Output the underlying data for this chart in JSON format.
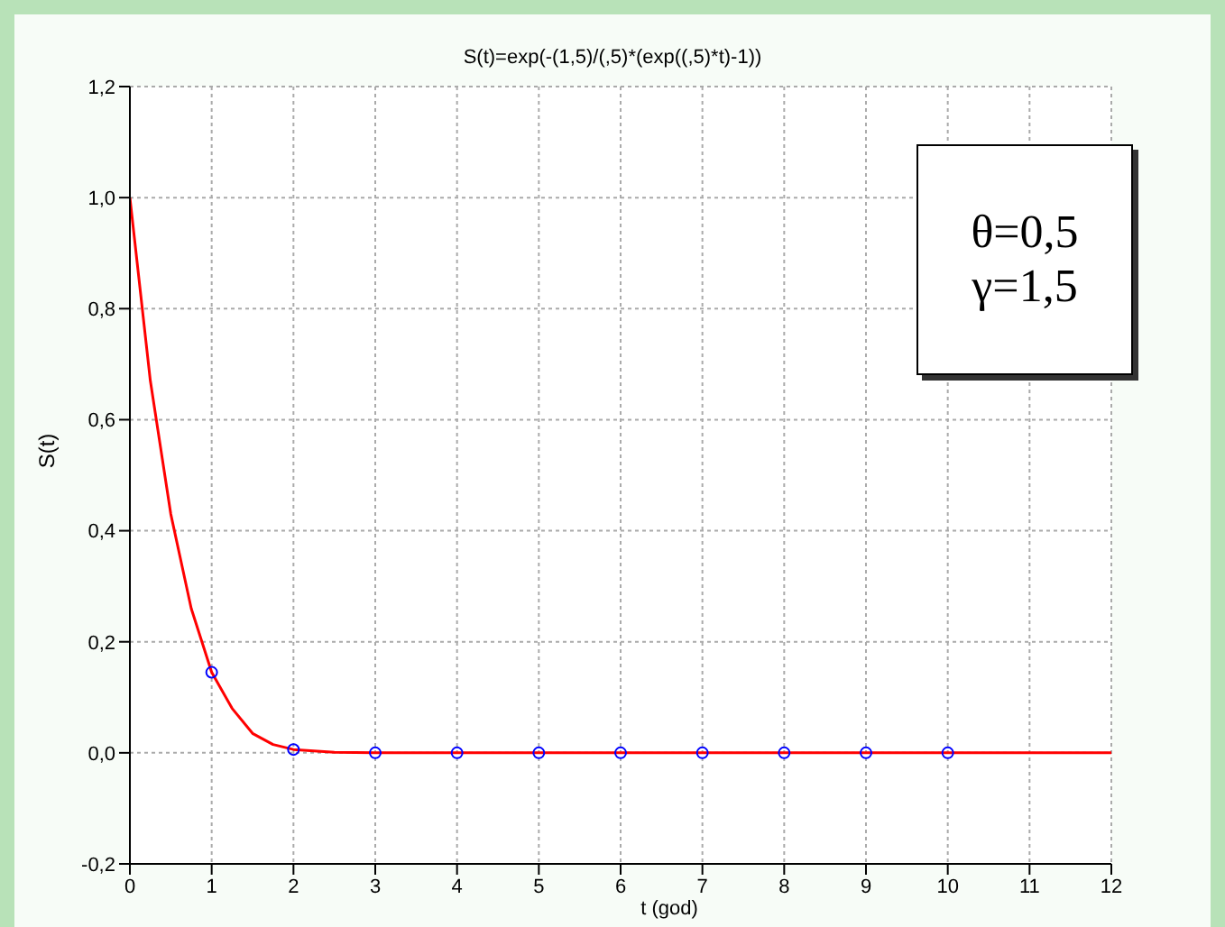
{
  "chart_data": {
    "type": "line",
    "title": "S(t)=exp(-(1,5)/(,5)*(exp((,5)*t)-1))",
    "xlabel": "t (god)",
    "ylabel": "S(t)",
    "annotations": [
      "θ=0,5",
      "γ=1,5"
    ],
    "xlim": [
      0,
      12
    ],
    "xticks": [
      0,
      1,
      2,
      3,
      4,
      5,
      6,
      7,
      8,
      9,
      10,
      11,
      12
    ],
    "ylim": [
      -0.2,
      1.2
    ],
    "yticks": [
      {
        "value": -0.2,
        "label": "-0,2"
      },
      {
        "value": 0,
        "label": "0,0"
      },
      {
        "value": 0.2,
        "label": "0,2"
      },
      {
        "value": 0.4,
        "label": "0,4"
      },
      {
        "value": 0.6,
        "label": "0,6"
      },
      {
        "value": 0.8,
        "label": "0,8"
      },
      {
        "value": 1,
        "label": "1,0"
      },
      {
        "value": 1.2,
        "label": "1,2"
      }
    ],
    "grid": true,
    "series": [
      {
        "color": "#ff0000",
        "marker": "none",
        "x": [
          0,
          0.25,
          0.5,
          0.75,
          1,
          1.25,
          1.5,
          1.75,
          2,
          2.5,
          3,
          4,
          6,
          8,
          10,
          12
        ],
        "values": [
          1,
          0.67,
          0.43,
          0.26,
          0.145,
          0.08,
          0.035,
          0.015,
          0.006,
          0.001,
          0,
          0,
          0,
          0,
          0,
          0
        ]
      },
      {
        "type": "scatter",
        "color": "#0000ff",
        "marker": "circle",
        "x": [
          1,
          2,
          3,
          4,
          5,
          6,
          7,
          8,
          9,
          10
        ],
        "values": [
          0.145,
          0.006,
          0,
          0,
          0,
          0,
          0,
          0,
          0,
          0
        ]
      }
    ]
  }
}
